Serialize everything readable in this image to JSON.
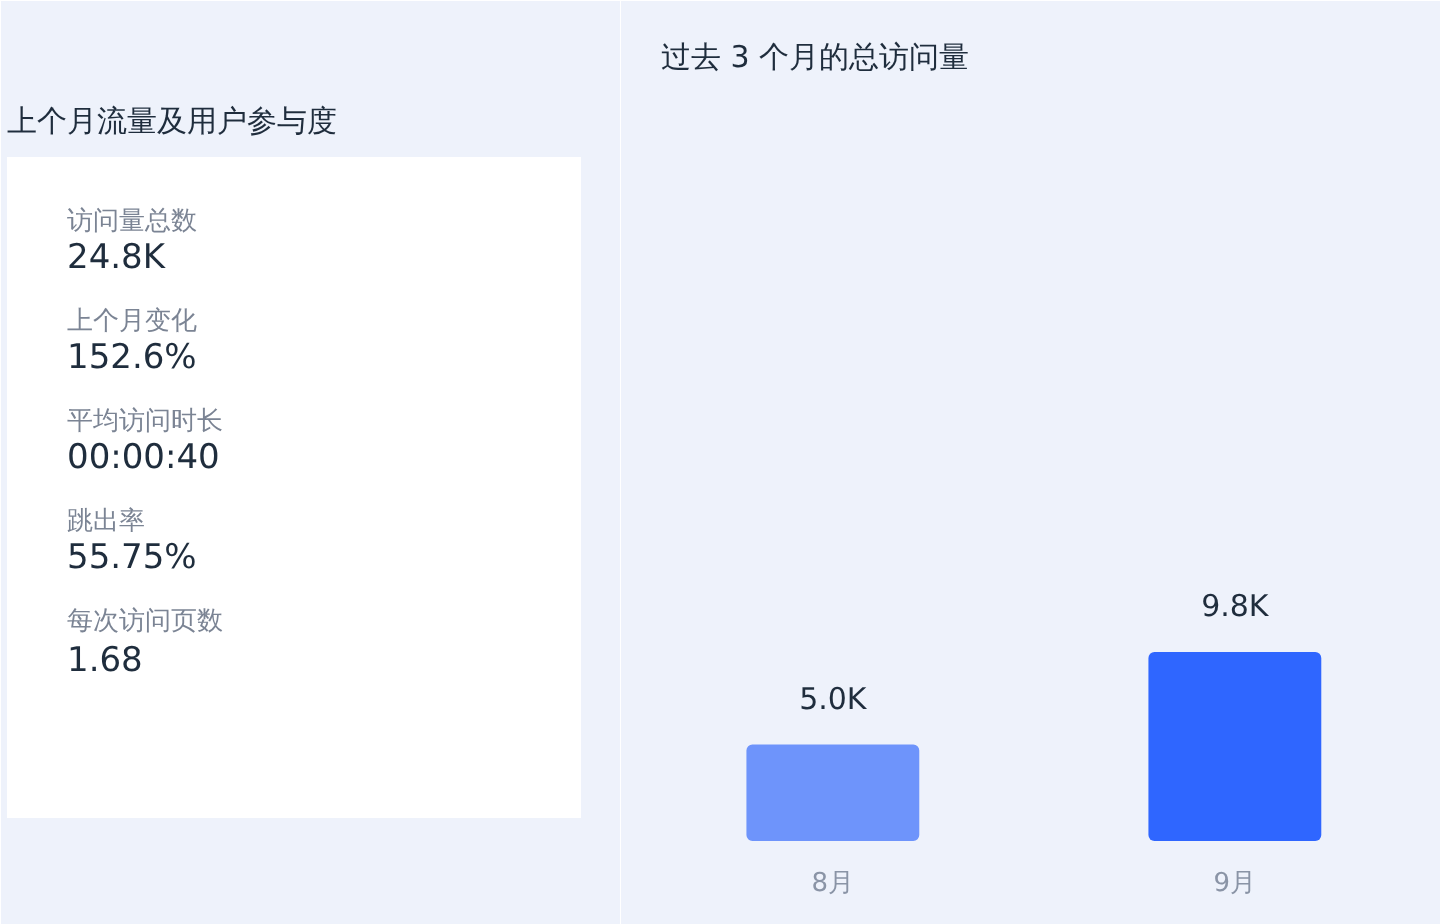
{
  "chart_data": [
    {
      "type": "other",
      "title": "上个月流量及用户参与度",
      "annotations": [
        "访问量总数",
        "24.8K",
        "上个月变化",
        "152.6%",
        "平均访问时长",
        "00:00:40",
        "跳出率",
        "55.75%",
        "每次访问页数",
        "1.68"
      ]
    },
    {
      "type": "bar",
      "title": "过去 3 个月的总访问量",
      "categories": [
        "8月",
        "9月"
      ],
      "values": [
        5.0,
        9.8
      ],
      "colors": [
        "#6e94fb",
        "#2f66ff"
      ],
      "value_labels": [
        "5.0K",
        "9.8K"
      ],
      "grid": false
    }
  ]
}
